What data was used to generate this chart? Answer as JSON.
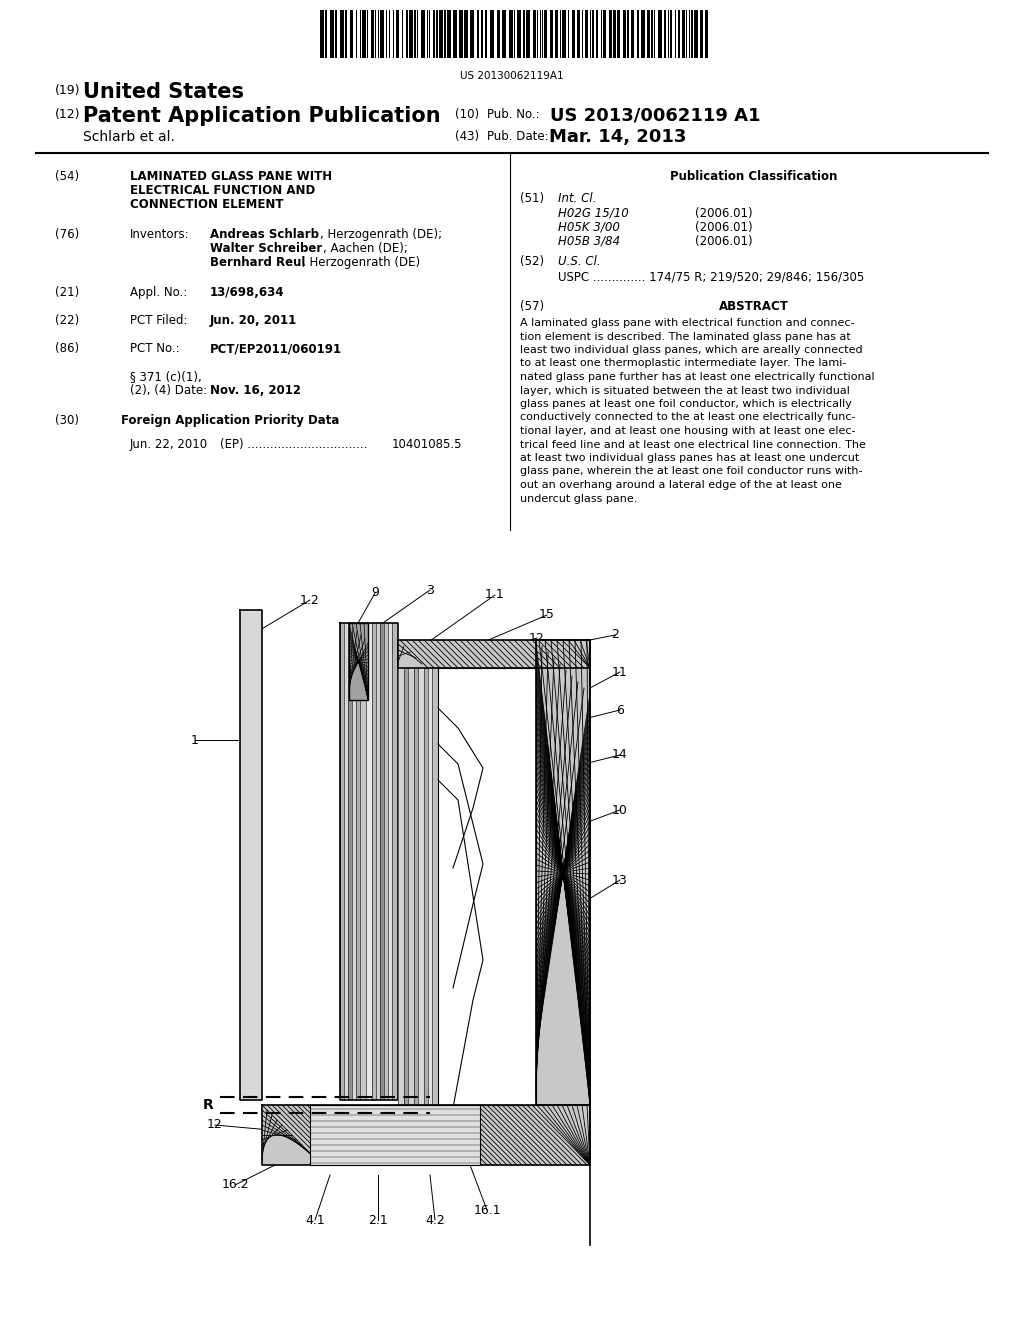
{
  "background_color": "#ffffff",
  "barcode_text": "US 20130062119A1",
  "title_19": "(19) United States",
  "title_12": "(12) Patent Application Publication",
  "pub_no_label": "(10) Pub. No.:",
  "pub_no_value": "US 2013/0062119 A1",
  "author": "Schlarb et al.",
  "pub_date_label": "(43) Pub. Date:",
  "pub_date_value": "Mar. 14, 2013",
  "pub_class_title": "Publication Classification",
  "section57_title": "ABSTRACT",
  "abstract_text": "A laminated glass pane with electrical function and connec-\ntion element is described. The laminated glass pane has at\nleast two individual glass panes, which are areally connected\nto at least one thermoplastic intermediate layer. The lami-\nnated glass pane further has at least one electrically functional\nlayer, which is situated between the at least two individual\nglass panes at least one foil conductor, which is electrically\nconductively connected to the at least one electrically func-\ntional layer, and at least one housing with at least one elec-\ntrical feed line and at least one electrical line connection. The\nat least two individual glass panes has at least one undercut\nglass pane, wherein the at least one foil conductor runs with-\nout an overhang around a lateral edge of the at least one\nundercut glass pane."
}
